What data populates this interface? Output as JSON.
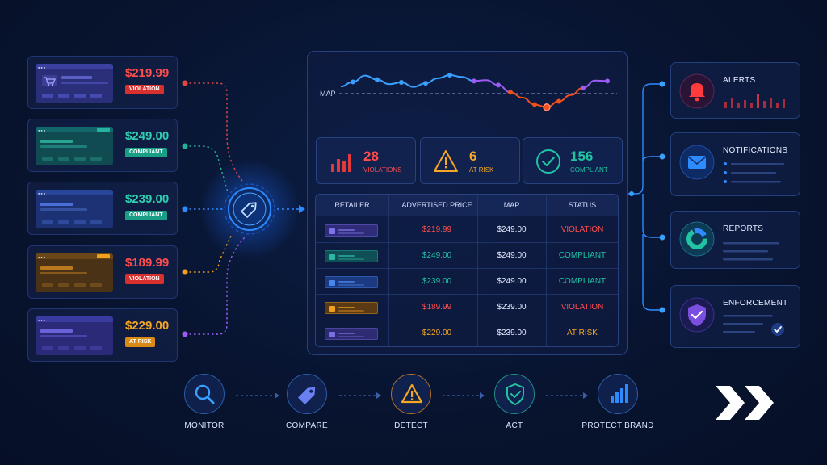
{
  "colors": {
    "violation": "#e23a3a",
    "compliant": "#21b39a",
    "at_risk": "#f0a01e",
    "accent_blue": "#2e8bff",
    "purple": "#9b5cf6"
  },
  "retailers": [
    {
      "price": "$219.99",
      "status": "VIOLATION",
      "theme": "purple",
      "icon": "shopping-cart-icon"
    },
    {
      "price": "$249.00",
      "status": "COMPLIANT",
      "theme": "teal",
      "icon": ""
    },
    {
      "price": "$239.00",
      "status": "COMPLIANT",
      "theme": "blue",
      "icon": ""
    },
    {
      "price": "$189.99",
      "status": "VIOLATION",
      "theme": "orange",
      "icon": ""
    },
    {
      "price": "$229.00",
      "status": "AT RISK",
      "theme": "indigo",
      "icon": ""
    }
  ],
  "hub": {
    "icon": "price-tag-icon"
  },
  "map_chart": {
    "label": "MAP",
    "points": [
      0.32,
      0.52,
      0.8,
      0.62,
      0.42,
      0.5,
      0.3,
      0.46,
      0.68,
      0.82,
      0.74,
      0.56,
      0.6,
      0.38,
      0.06,
      -0.18,
      -0.48,
      -0.6,
      -0.34,
      -0.06,
      0.26,
      0.58,
      0.56
    ],
    "line_segments": [
      {
        "from": 0,
        "to": 11,
        "color": "#3aa0ff"
      },
      {
        "from": 11,
        "to": 14,
        "color": "#9b5cf6"
      },
      {
        "from": 14,
        "to": 20,
        "color": "#f0501e"
      },
      {
        "from": 20,
        "to": 22,
        "color": "#9b5cf6"
      }
    ]
  },
  "kpis": [
    {
      "value": "28",
      "label": "VIOLATIONS",
      "color": "#ff4d4d",
      "icon": "bar-chart-icon"
    },
    {
      "value": "6",
      "label": "AT RISK",
      "color": "#f5a623",
      "icon": "warning-triangle-icon"
    },
    {
      "value": "156",
      "label": "COMPLIANT",
      "color": "#21c3a3",
      "icon": "check-circle-icon"
    }
  ],
  "table": {
    "headers": [
      "RETAILER",
      "ADVERTISED PRICE",
      "MAP",
      "STATUS"
    ],
    "rows": [
      {
        "theme": "purple",
        "price": "$219.99",
        "map": "$249.00",
        "status": "VIOLATION",
        "tone": "violation"
      },
      {
        "theme": "teal",
        "price": "$249.00",
        "map": "$249.00",
        "status": "COMPLIANT",
        "tone": "compliant"
      },
      {
        "theme": "blue",
        "price": "$239.00",
        "map": "$249.00",
        "status": "COMPLIANT",
        "tone": "compliant"
      },
      {
        "theme": "orange",
        "price": "$189.99",
        "map": "$239.00",
        "status": "VIOLATION",
        "tone": "violation"
      },
      {
        "theme": "indigo",
        "price": "$229.00",
        "map": "$239.00",
        "status": "AT RISK",
        "tone": "at_risk"
      }
    ]
  },
  "actions": [
    {
      "title": "ALERTS",
      "icon": "bell-icon"
    },
    {
      "title": "NOTIFICATIONS",
      "icon": "envelope-icon"
    },
    {
      "title": "REPORTS",
      "icon": "donut-chart-icon"
    },
    {
      "title": "ENFORCEMENT",
      "icon": "shield-check-icon"
    }
  ],
  "flow": [
    {
      "label": "MONITOR",
      "icon": "magnifier-icon"
    },
    {
      "label": "COMPARE",
      "icon": "price-tag-icon"
    },
    {
      "label": "DETECT",
      "icon": "warning-triangle-icon"
    },
    {
      "label": "ACT",
      "icon": "shield-check-icon"
    },
    {
      "label": "PROTECT BRAND",
      "icon": "bar-chart-icon"
    }
  ],
  "logo": {
    "icon": "double-chevron-logo"
  }
}
